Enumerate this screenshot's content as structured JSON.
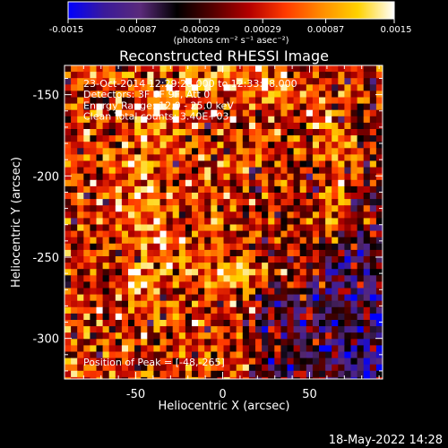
{
  "chart_data": {
    "type": "heatmap",
    "title": "Reconstructed RHESSI Image",
    "xlabel": "Heliocentric X (arcsec)",
    "ylabel": "Heliocentric Y (arcsec)",
    "xlim": [
      -91,
      92
    ],
    "ylim": [
      -325,
      -132
    ],
    "xticks": [
      -50,
      0,
      50
    ],
    "yticks": [
      -150,
      -200,
      -250,
      -300
    ],
    "colorbar": {
      "label": "(photons cm⁻² s⁻¹ asec⁻²)",
      "range": [
        -0.0015,
        0.0015
      ],
      "ticks": [
        "-0.0015",
        "-0.00087",
        "-0.00029",
        "0.00029",
        "0.00087",
        "0.0015"
      ],
      "palette": [
        "#0000ff",
        "#3a1a9a",
        "#5a2a7a",
        "#000000",
        "#550000",
        "#b40000",
        "#ff3a00",
        "#ff8c00",
        "#ffd200",
        "#ffffff"
      ]
    },
    "annotations": [
      "23-Oct-2014 12:29:28.000 to 12:33:28.000",
      "Detectors: 3F 6F 9F, Att 0",
      "Energy Range: 12.0 - 25.0 keV",
      "Clean    Total counts: 3.40E+03"
    ],
    "peak_label": "Position of Peak = [-48,-265]",
    "peak": {
      "x": -48,
      "y": -265
    }
  },
  "timestamp": "18-May-2022 14:28"
}
